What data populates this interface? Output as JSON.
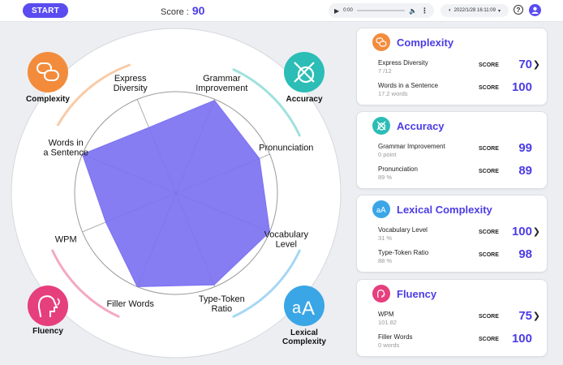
{
  "topbar": {
    "start_label": "START",
    "score_label": "Score :",
    "score_value": "90",
    "audio_time": "0:00",
    "datetime": "2022/1/28 16:11:09"
  },
  "radar": {
    "categories": [
      {
        "name": "Complexity",
        "color": "#f28c3c",
        "icon": "speech-bubbles-icon"
      },
      {
        "name": "Accuracy",
        "color": "#2bbdb6",
        "icon": "crossed-circle-icon"
      },
      {
        "name": "Lexical Complexity",
        "color": "#3aa6e6",
        "icon": "letter-a-icon"
      },
      {
        "name": "Fluency",
        "color": "#e63f7d",
        "icon": "speaking-head-icon"
      }
    ],
    "axes": [
      "Grammar Improvement",
      "Pronunciation",
      "Vocabulary Level",
      "Type-Token Ratio",
      "Filler Words",
      "WPM",
      "Words in a Sentence",
      "Express Diversity"
    ],
    "values": [
      99,
      89,
      100,
      98,
      100,
      75,
      100,
      70
    ],
    "max": 100,
    "fill_color": "#7c72f2"
  },
  "cards": [
    {
      "title": "Complexity",
      "color": "#f28c3c",
      "icon": "speech-bubbles-icon",
      "rows": [
        {
          "label": "Express Diversity",
          "sub": "7 /12",
          "score_label": "SCORE",
          "value": "70"
        },
        {
          "label": "Words in a Sentence",
          "sub": "17.2 words",
          "score_label": "SCORE",
          "value": "100"
        }
      ]
    },
    {
      "title": "Accuracy",
      "color": "#2bbdb6",
      "icon": "crossed-circle-icon",
      "rows": [
        {
          "label": "Grammar Improvement",
          "sub": "0 point",
          "score_label": "SCORE",
          "value": "99"
        },
        {
          "label": "Pronunciation",
          "sub": "89 %",
          "score_label": "SCORE",
          "value": "89"
        }
      ]
    },
    {
      "title": "Lexical Complexity",
      "color": "#3aa6e6",
      "icon": "letter-a-icon",
      "rows": [
        {
          "label": "Vocabulary Level",
          "sub": "31 %",
          "score_label": "SCORE",
          "value": "100"
        },
        {
          "label": "Type-Token Ratio",
          "sub": "88 %",
          "score_label": "SCORE",
          "value": "98"
        }
      ]
    },
    {
      "title": "Fluency",
      "color": "#e63f7d",
      "icon": "speaking-head-icon",
      "rows": [
        {
          "label": "WPM",
          "sub": "101.82",
          "score_label": "SCORE",
          "value": "75"
        },
        {
          "label": "Filler Words",
          "sub": "0 words",
          "score_label": "SCORE",
          "value": "100"
        }
      ]
    }
  ]
}
